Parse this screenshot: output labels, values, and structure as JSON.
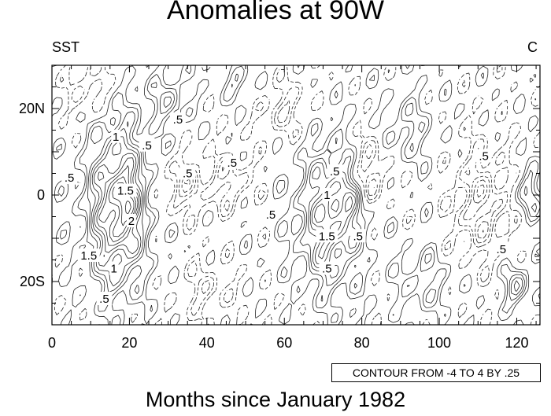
{
  "chart_data": {
    "type": "contour",
    "title": "Anomalies at 90W",
    "left_label": "SST",
    "right_label": "C",
    "xlabel": "Months since January 1982",
    "ylabel": "",
    "xlim": [
      0,
      126
    ],
    "ylim": [
      -30,
      30
    ],
    "x_ticks": [
      0,
      20,
      40,
      60,
      80,
      100,
      120
    ],
    "y_ticks": [
      {
        "value": 20,
        "label": "20N"
      },
      {
        "value": 0,
        "label": "0"
      },
      {
        "value": -20,
        "label": "20S"
      }
    ],
    "contour_info": "CONTOUR FROM -4 TO 4 BY .25",
    "contour_range": [
      -4,
      4
    ],
    "contour_interval": 0.25,
    "contour_labels": [
      {
        "x": 4.5,
        "y": 4,
        "text": ".5"
      },
      {
        "x": 16.5,
        "y": 13.5,
        "text": "1"
      },
      {
        "x": 19,
        "y": 1,
        "text": "1.5"
      },
      {
        "x": 20.5,
        "y": -6,
        "text": "2"
      },
      {
        "x": 9.5,
        "y": -14,
        "text": "1.5"
      },
      {
        "x": 16,
        "y": -17,
        "text": "1"
      },
      {
        "x": 13.5,
        "y": -24,
        "text": ".5"
      },
      {
        "x": 32.5,
        "y": 17.5,
        "text": ".5"
      },
      {
        "x": 24.5,
        "y": 11.5,
        "text": ".5"
      },
      {
        "x": 35,
        "y": 5,
        "text": ".5"
      },
      {
        "x": 46.5,
        "y": 7.5,
        "text": ".5"
      },
      {
        "x": 56.5,
        "y": -4.5,
        "text": ".5"
      },
      {
        "x": 73,
        "y": 5.5,
        "text": ".5"
      },
      {
        "x": 71,
        "y": 0,
        "text": "1"
      },
      {
        "x": 71,
        "y": -9.5,
        "text": "1.5"
      },
      {
        "x": 79,
        "y": -9.5,
        "text": ".5"
      },
      {
        "x": 71,
        "y": -17,
        "text": ".5"
      },
      {
        "x": 111.5,
        "y": 9,
        "text": ".5"
      },
      {
        "x": 116,
        "y": -12.5,
        "text": ".5"
      }
    ]
  }
}
